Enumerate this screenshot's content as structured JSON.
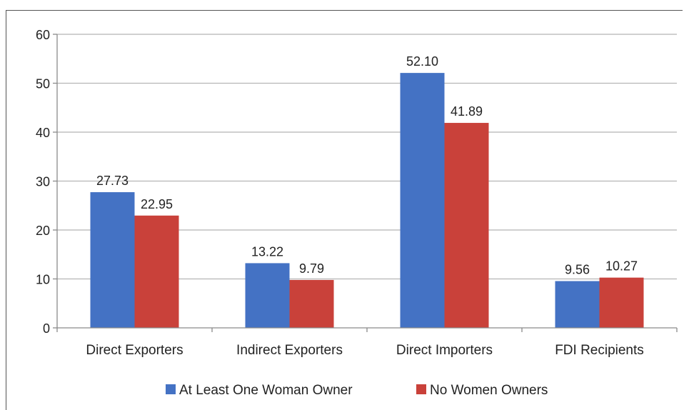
{
  "chart_data": {
    "type": "bar",
    "categories": [
      "Direct Exporters",
      "Indirect Exporters",
      "Direct Importers",
      "FDI Recipients"
    ],
    "series": [
      {
        "name": "At Least One Woman Owner",
        "values": [
          27.73,
          13.22,
          52.1,
          9.56
        ],
        "labels": [
          "27.73",
          "13.22",
          "52.10",
          "9.56"
        ],
        "color": "#4472C4"
      },
      {
        "name": "No Women Owners",
        "values": [
          22.95,
          9.79,
          41.89,
          10.27
        ],
        "labels": [
          "22.95",
          "9.79",
          "41.89",
          "10.27"
        ],
        "color": "#C9413A"
      }
    ],
    "ylim": [
      0,
      60
    ],
    "yticks": [
      "0",
      "10",
      "20",
      "30",
      "40",
      "50",
      "60"
    ],
    "grid": true,
    "legend": "bottom"
  }
}
